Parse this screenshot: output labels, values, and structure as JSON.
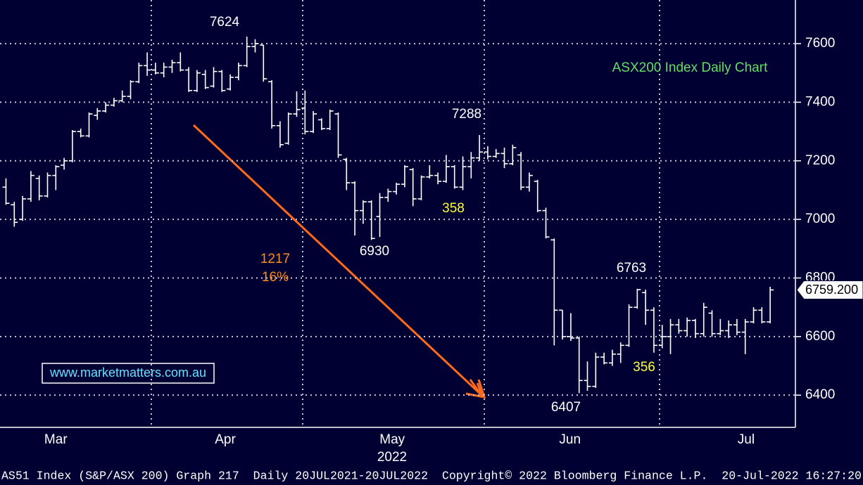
{
  "chart_data": {
    "type": "ohlc",
    "title": "ASX200 Index Daily Chart",
    "color": "#ffffff",
    "grid": true,
    "open": [
      7110,
      7050,
      7000,
      7070,
      7140,
      7080,
      7150,
      7185,
      7200,
      7300,
      7285,
      7355,
      7370,
      7390,
      7405,
      7420,
      7470,
      7525,
      7510,
      7500,
      7520,
      7535,
      7510,
      7440,
      7495,
      7455,
      7505,
      7445,
      7485,
      7525,
      7590,
      7595,
      7470,
      7320,
      7260,
      7360,
      7380,
      7300,
      7340,
      7310,
      7360,
      7205,
      7125,
      7030,
      7060,
      7010,
      7075,
      7095,
      7120,
      7170,
      7070,
      7145,
      7150,
      7130,
      7180,
      7110,
      7180,
      7210,
      7230,
      7215,
      7225,
      7190,
      7220,
      7110,
      7130,
      7030,
      6930,
      6690,
      6600,
      6595,
      6450,
      6430,
      6530,
      6510,
      6540,
      6570,
      6700,
      6750,
      6690,
      6570,
      6600,
      6640,
      6620,
      6655,
      6610,
      6680,
      6610,
      6620,
      6640,
      6615,
      6650,
      6690,
      6650
    ],
    "high": [
      7140,
      7060,
      7080,
      7165,
      7150,
      7160,
      7185,
      7210,
      7305,
      7310,
      7365,
      7380,
      7400,
      7415,
      7440,
      7475,
      7535,
      7570,
      7535,
      7535,
      7545,
      7570,
      7520,
      7510,
      7510,
      7520,
      7510,
      7495,
      7535,
      7624,
      7615,
      7595,
      7475,
      7335,
      7365,
      7437,
      7440,
      7370,
      7345,
      7375,
      7365,
      7210,
      7130,
      7065,
      7065,
      7090,
      7105,
      7125,
      7185,
      7175,
      7150,
      7185,
      7160,
      7220,
      7185,
      7215,
      7230,
      7288,
      7250,
      7240,
      7245,
      7255,
      7230,
      7160,
      7135,
      7040,
      6935,
      6690,
      6680,
      6600,
      6515,
      6545,
      6545,
      6555,
      6580,
      6710,
      6763,
      6760,
      6700,
      6640,
      6660,
      6660,
      6665,
      6660,
      6715,
      6690,
      6660,
      6655,
      6660,
      6660,
      6700,
      6700,
      6770
    ],
    "low": [
      7050,
      6975,
      6995,
      7060,
      7065,
      7075,
      7100,
      7170,
      7195,
      7280,
      7280,
      7340,
      7365,
      7385,
      7400,
      7410,
      7465,
      7490,
      7495,
      7485,
      7500,
      7505,
      7435,
      7435,
      7445,
      7450,
      7435,
      7440,
      7475,
      7520,
      7570,
      7470,
      7310,
      7245,
      7255,
      7350,
      7290,
      7295,
      7305,
      7305,
      7210,
      7100,
      6945,
      6985,
      6930,
      6940,
      7060,
      7085,
      7110,
      7045,
      7065,
      7140,
      7120,
      7125,
      7105,
      7100,
      7140,
      7200,
      7205,
      7210,
      7175,
      7185,
      7100,
      7095,
      7025,
      6935,
      6570,
      6590,
      6585,
      6407,
      6415,
      6425,
      6505,
      6500,
      6510,
      6565,
      6695,
      6640,
      6545,
      6560,
      6540,
      6610,
      6600,
      6595,
      6600,
      6600,
      6605,
      6595,
      6605,
      6540,
      6645,
      6645,
      6645
    ],
    "close": [
      7055,
      6990,
      7070,
      7150,
      7080,
      7150,
      7180,
      7200,
      7300,
      7285,
      7360,
      7370,
      7390,
      7405,
      7420,
      7470,
      7525,
      7510,
      7500,
      7520,
      7535,
      7510,
      7440,
      7500,
      7450,
      7505,
      7440,
      7485,
      7525,
      7590,
      7600,
      7480,
      7320,
      7255,
      7360,
      7375,
      7300,
      7360,
      7310,
      7370,
      7220,
      7125,
      7030,
      7060,
      6935,
      7075,
      7095,
      7120,
      7180,
      7070,
      7145,
      7150,
      7130,
      7180,
      7110,
      7180,
      7210,
      7230,
      7215,
      7225,
      7190,
      7245,
      7110,
      7150,
      7030,
      6940,
      6690,
      6600,
      6595,
      6450,
      6430,
      6530,
      6510,
      6540,
      6570,
      6700,
      6760,
      6690,
      6570,
      6600,
      6640,
      6620,
      6655,
      6610,
      6700,
      6610,
      6620,
      6640,
      6615,
      6650,
      6690,
      6650,
      6759.2
    ],
    "ylim": [
      6290,
      7749
    ],
    "yticks": [
      6400,
      6600,
      6800,
      7000,
      7200,
      7400,
      7600
    ],
    "xlim": [
      -0.72,
      95.04
    ],
    "xticks": [
      {
        "value": 6,
        "label": "Mar"
      },
      {
        "value": 26.4,
        "label": "Apr"
      },
      {
        "value": 46.5,
        "label": "May"
      },
      {
        "value": 67.9,
        "label": "Jun"
      },
      {
        "value": 89.1,
        "label": "Jul"
      }
    ],
    "year_label": "2022",
    "last_price": {
      "value": 6759.2,
      "label": "6759.200"
    },
    "annotations": {
      "high_apr": "7624",
      "high_may": "7288",
      "low_may": "6930",
      "rally_may": "358",
      "drop_points": "1217",
      "drop_pct": "16%",
      "high_jun": "6763",
      "low_jun": "6407",
      "rally_jun": "356"
    }
  },
  "website": "www.marketmatters.com.au",
  "footer": "AS51 Index (S&P/ASX 200) Graph 217  Daily 20JUL2021-20JUL2022  Copyright© 2022 Bloomberg Finance L.P.  20-Jul-2022 16:27:20"
}
